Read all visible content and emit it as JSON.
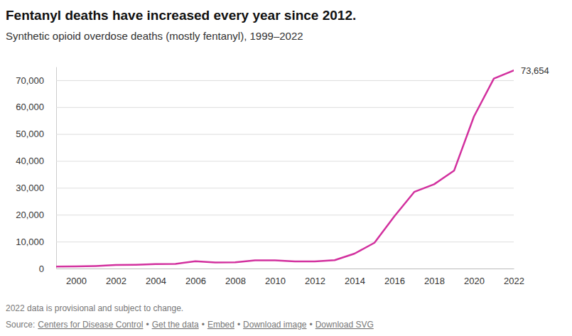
{
  "chart_data": {
    "type": "line",
    "title": "Fentanyl deaths have increased every year since 2012.",
    "subtitle": "Synthetic opioid overdose deaths (mostly fentanyl), 1999–2022",
    "x": [
      1999,
      2000,
      2001,
      2002,
      2003,
      2004,
      2005,
      2006,
      2007,
      2008,
      2009,
      2010,
      2011,
      2012,
      2013,
      2014,
      2015,
      2016,
      2017,
      2018,
      2019,
      2020,
      2021,
      2022
    ],
    "values": [
      730,
      782,
      957,
      1295,
      1400,
      1664,
      1742,
      2707,
      2213,
      2306,
      3007,
      3007,
      2666,
      2628,
      3105,
      5544,
      9580,
      19413,
      28466,
      31335,
      36359,
      56516,
      70601,
      73654
    ],
    "value_labels": [
      null,
      null,
      null,
      null,
      null,
      null,
      null,
      null,
      null,
      null,
      null,
      null,
      null,
      null,
      null,
      null,
      null,
      null,
      null,
      null,
      null,
      null,
      null,
      "73,654"
    ],
    "data_labels": true,
    "color": "#d2309e",
    "xlim": [
      1999,
      2022
    ],
    "xticks": [
      2000,
      2002,
      2004,
      2006,
      2008,
      2010,
      2012,
      2014,
      2016,
      2018,
      2020,
      2022
    ],
    "ylim": [
      0,
      75000
    ],
    "yticks": [
      0,
      {
        "value": 10000,
        "label": "10,000"
      },
      {
        "value": 20000,
        "label": "20,000"
      },
      {
        "value": 30000,
        "label": "30,000"
      },
      {
        "value": 40000,
        "label": "40,000"
      },
      {
        "value": 50000,
        "label": "50,000"
      },
      {
        "value": 60000,
        "label": "60,000"
      },
      {
        "value": 70000,
        "label": "70,000"
      }
    ],
    "grid": true,
    "note": "2022 data is provisional and subject to change.",
    "source": {
      "label": "Source:",
      "separator": "•",
      "links": [
        "Centers for Disease Control",
        "Get the data",
        "Embed",
        "Download image",
        "Download SVG"
      ]
    }
  }
}
